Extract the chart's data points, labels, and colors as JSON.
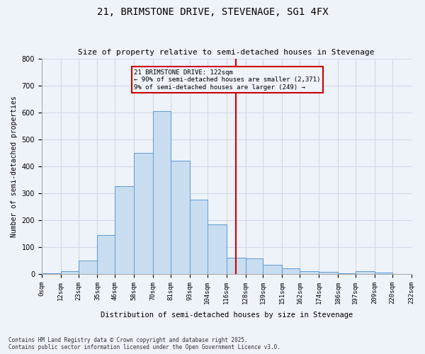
{
  "title": "21, BRIMSTONE DRIVE, STEVENAGE, SG1 4FX",
  "subtitle": "Size of property relative to semi-detached houses in Stevenage",
  "xlabel": "Distribution of semi-detached houses by size in Stevenage",
  "ylabel": "Number of semi-detached properties",
  "footnote1": "Contains HM Land Registry data © Crown copyright and database right 2025.",
  "footnote2": "Contains public sector information licensed under the Open Government Licence v3.0.",
  "annotation_title": "21 BRIMSTONE DRIVE: 122sqm",
  "annotation_line1": "← 90% of semi-detached houses are smaller (2,371)",
  "annotation_line2": "9% of semi-detached houses are larger (249) →",
  "property_size": 122,
  "bar_left_edges": [
    0,
    12,
    23,
    35,
    46,
    58,
    70,
    81,
    93,
    104,
    116,
    128,
    139,
    151,
    162,
    174,
    186,
    197,
    209,
    220,
    232
  ],
  "bar_heights": [
    2,
    10,
    50,
    145,
    325,
    450,
    605,
    420,
    275,
    185,
    60,
    58,
    35,
    20,
    10,
    7,
    3,
    10,
    5,
    0
  ],
  "bar_color": "#c9ddf0",
  "bar_edge_color": "#5b9bd5",
  "vline_color": "#cc0000",
  "vline_x": 122,
  "box_color": "#cc0000",
  "grid_color": "#d0d8e8",
  "bg_color": "#eef2f9",
  "ylim": [
    0,
    800
  ],
  "yticks": [
    0,
    100,
    200,
    300,
    400,
    500,
    600,
    700,
    800
  ],
  "tick_labels": [
    "0sqm",
    "12sqm",
    "23sqm",
    "35sqm",
    "46sqm",
    "58sqm",
    "70sqm",
    "81sqm",
    "93sqm",
    "104sqm",
    "116sqm",
    "128sqm",
    "139sqm",
    "151sqm",
    "162sqm",
    "174sqm",
    "186sqm",
    "197sqm",
    "209sqm",
    "220sqm",
    "232sqm"
  ]
}
